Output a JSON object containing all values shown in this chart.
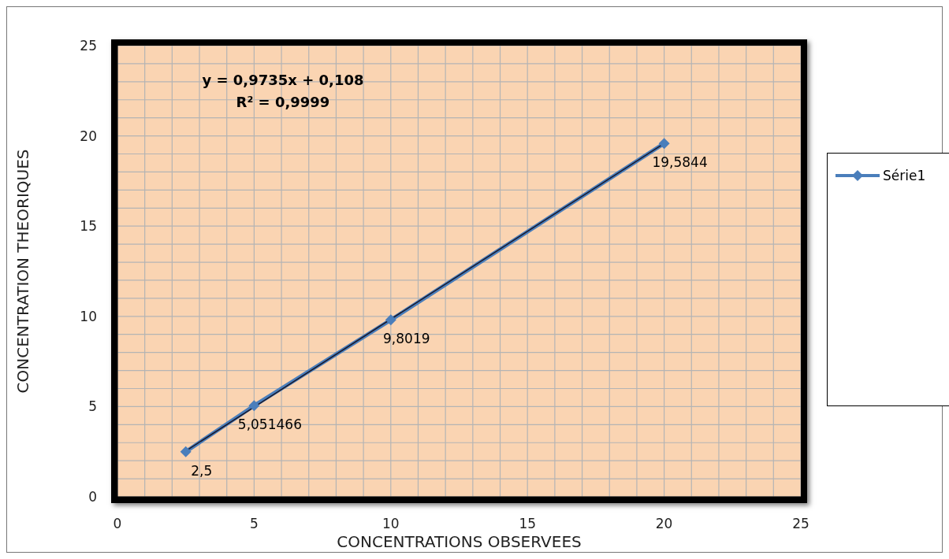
{
  "chart_data": {
    "type": "line",
    "xlabel": "CONCENTRATIONS OBSERVEES",
    "ylabel": "CONCENTRATION THEORIQUES",
    "annotations": [
      "y = 0,9735x + 0,108",
      "R² = 0,9999"
    ],
    "series": [
      {
        "name": "Série1",
        "color": "#4a7ebb",
        "x": [
          2.5,
          5,
          10,
          20
        ],
        "values": [
          2.5,
          5.051466,
          9.8019,
          19.5844
        ],
        "value_labels": [
          "2,5",
          "5,051466",
          "9,8019",
          "19,5844"
        ],
        "marker": "diamond"
      },
      {
        "type": "line",
        "color": "#1a1a2e",
        "x": [
          2.5,
          20
        ],
        "values": [
          2.54,
          19.58
        ],
        "marker": "none"
      }
    ],
    "xlim": [
      0,
      25
    ],
    "ylim": [
      0,
      25
    ],
    "xticks": [
      0,
      {
        "value": 1,
        "label": null
      },
      {
        "value": 2,
        "label": null
      },
      {
        "value": 3,
        "label": null
      },
      {
        "value": 4,
        "label": null
      },
      5,
      {
        "value": 6,
        "label": null
      },
      {
        "value": 7,
        "label": null
      },
      {
        "value": 8,
        "label": null
      },
      {
        "value": 9,
        "label": null
      },
      10,
      {
        "value": 11,
        "label": null
      },
      {
        "value": 12,
        "label": null
      },
      {
        "value": 13,
        "label": null
      },
      {
        "value": 14,
        "label": null
      },
      15,
      {
        "value": 16,
        "label": null
      },
      {
        "value": 17,
        "label": null
      },
      {
        "value": 18,
        "label": null
      },
      {
        "value": 19,
        "label": null
      },
      20,
      {
        "value": 21,
        "label": null
      },
      {
        "value": 22,
        "label": null
      },
      {
        "value": 23,
        "label": null
      },
      {
        "value": 24,
        "label": null
      },
      25
    ],
    "yticks": [
      0,
      {
        "value": 1,
        "label": null
      },
      {
        "value": 2,
        "label": null
      },
      {
        "value": 3,
        "label": null
      },
      {
        "value": 4,
        "label": null
      },
      5,
      {
        "value": 6,
        "label": null
      },
      {
        "value": 7,
        "label": null
      },
      {
        "value": 8,
        "label": null
      },
      {
        "value": 9,
        "label": null
      },
      10,
      {
        "value": 11,
        "label": null
      },
      {
        "value": 12,
        "label": null
      },
      {
        "value": 13,
        "label": null
      },
      {
        "value": 14,
        "label": null
      },
      15,
      {
        "value": 16,
        "label": null
      },
      {
        "value": 17,
        "label": null
      },
      {
        "value": 18,
        "label": null
      },
      {
        "value": 19,
        "label": null
      },
      20,
      {
        "value": 21,
        "label": null
      },
      {
        "value": 22,
        "label": null
      },
      {
        "value": 23,
        "label": null
      },
      {
        "value": 24,
        "label": null
      },
      25
    ],
    "grid": true,
    "legend": "right",
    "line_style": "solid"
  }
}
